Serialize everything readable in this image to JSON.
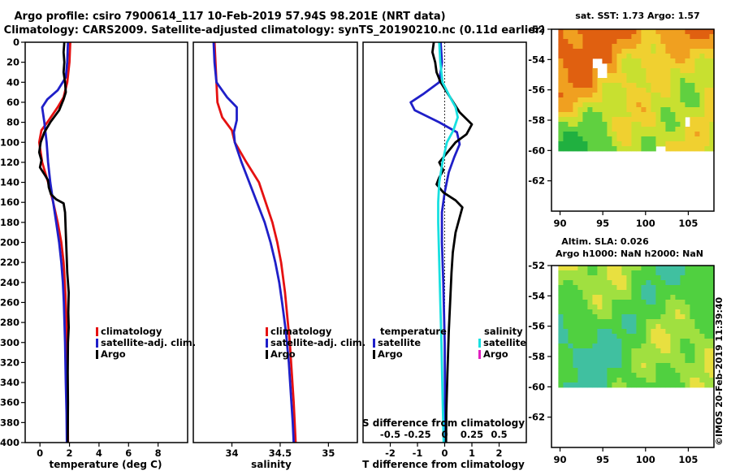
{
  "title": {
    "line1": "Argo profile: csiro 7900614_117 10-Feb-2019 57.94S 98.201E (NRT data)",
    "line2": "Climatology: CARS2009. Satellite-adjusted climatology: synTS_20190210.nc (0.11d earlier)"
  },
  "depth_ticks": [
    0,
    20,
    40,
    60,
    80,
    100,
    120,
    140,
    160,
    180,
    200,
    220,
    240,
    260,
    280,
    300,
    320,
    340,
    360,
    380,
    400
  ],
  "colors": {
    "climatology": "#e51111",
    "satellite": "#1f1fc8",
    "argo": "#000000",
    "satellite_s": "#18e0e0",
    "argo_s": "#e020c0"
  },
  "chart_data": [
    {
      "type": "line",
      "id": "temperature",
      "xlabel": "temperature (deg C)",
      "xlim": [
        -1,
        10
      ],
      "ylim": [
        400,
        0
      ],
      "xticks": [
        0,
        2,
        4,
        6,
        8
      ],
      "xtick_labels": [
        "0",
        "2",
        "4",
        "6",
        "8"
      ],
      "legend": [
        "climatology",
        "satellite-adj. clim.",
        "Argo"
      ],
      "series": [
        {
          "name": "climatology",
          "color": "#e51111",
          "points": [
            [
              2.05,
              0
            ],
            [
              2.0,
              20
            ],
            [
              1.85,
              40
            ],
            [
              1.6,
              55
            ],
            [
              1.2,
              65
            ],
            [
              0.6,
              78
            ],
            [
              0.1,
              88
            ],
            [
              -0.05,
              100
            ],
            [
              0.15,
              120
            ],
            [
              0.55,
              140
            ],
            [
              0.9,
              160
            ],
            [
              1.2,
              180
            ],
            [
              1.45,
              200
            ],
            [
              1.6,
              220
            ],
            [
              1.72,
              250
            ],
            [
              1.8,
              280
            ],
            [
              1.85,
              320
            ],
            [
              1.88,
              360
            ],
            [
              1.9,
              400
            ]
          ]
        },
        {
          "name": "satellite-adj. clim.",
          "color": "#1f1fc8",
          "points": [
            [
              1.9,
              0
            ],
            [
              1.85,
              20
            ],
            [
              1.75,
              35
            ],
            [
              1.2,
              48
            ],
            [
              0.5,
              57
            ],
            [
              0.15,
              65
            ],
            [
              0.3,
              80
            ],
            [
              0.45,
              100
            ],
            [
              0.55,
              120
            ],
            [
              0.7,
              140
            ],
            [
              0.9,
              160
            ],
            [
              1.1,
              180
            ],
            [
              1.3,
              200
            ],
            [
              1.45,
              220
            ],
            [
              1.55,
              240
            ],
            [
              1.62,
              260
            ],
            [
              1.7,
              300
            ],
            [
              1.75,
              340
            ],
            [
              1.8,
              370
            ],
            [
              1.82,
              400
            ]
          ]
        },
        {
          "name": "Argo",
          "color": "#000000",
          "points": [
            [
              1.65,
              0
            ],
            [
              1.6,
              10
            ],
            [
              1.65,
              20
            ],
            [
              1.6,
              30
            ],
            [
              1.7,
              40
            ],
            [
              1.75,
              50
            ],
            [
              1.6,
              57
            ],
            [
              1.3,
              68
            ],
            [
              0.7,
              80
            ],
            [
              0.3,
              90
            ],
            [
              0.05,
              100
            ],
            [
              -0.05,
              110
            ],
            [
              0.1,
              118
            ],
            [
              0.0,
              125
            ],
            [
              0.35,
              133
            ],
            [
              0.55,
              138
            ],
            [
              0.6,
              145
            ],
            [
              0.75,
              152
            ],
            [
              1.1,
              157
            ],
            [
              1.6,
              161
            ],
            [
              1.7,
              170
            ],
            [
              1.75,
              190
            ],
            [
              1.8,
              210
            ],
            [
              1.85,
              230
            ],
            [
              1.95,
              250
            ],
            [
              1.92,
              270
            ],
            [
              1.95,
              285
            ],
            [
              1.9,
              300
            ],
            [
              1.88,
              330
            ],
            [
              1.9,
              360
            ],
            [
              1.88,
              400
            ]
          ]
        }
      ]
    },
    {
      "type": "line",
      "id": "salinity",
      "xlabel": "salinity",
      "xlim": [
        33.6,
        35.3
      ],
      "ylim": [
        400,
        0
      ],
      "xticks": [
        34,
        34.5,
        35
      ],
      "xtick_labels": [
        "34",
        "34.5",
        "35"
      ],
      "legend": [
        "climatology",
        "satellite-adj. clim.",
        "Argo"
      ],
      "series": [
        {
          "name": "climatology",
          "color": "#e51111",
          "points": [
            [
              33.82,
              0
            ],
            [
              33.83,
              20
            ],
            [
              33.84,
              40
            ],
            [
              33.85,
              60
            ],
            [
              33.9,
              75
            ],
            [
              34.0,
              88
            ],
            [
              34.03,
              100
            ],
            [
              34.15,
              120
            ],
            [
              34.28,
              140
            ],
            [
              34.35,
              160
            ],
            [
              34.42,
              180
            ],
            [
              34.47,
              200
            ],
            [
              34.51,
              220
            ],
            [
              34.55,
              250
            ],
            [
              34.58,
              280
            ],
            [
              34.6,
              300
            ],
            [
              34.62,
              330
            ],
            [
              34.64,
              360
            ],
            [
              34.66,
              400
            ]
          ]
        },
        {
          "name": "satellite-adj. clim.",
          "color": "#1f1fc8",
          "points": [
            [
              33.81,
              0
            ],
            [
              33.82,
              20
            ],
            [
              33.84,
              40
            ],
            [
              33.95,
              55
            ],
            [
              34.05,
              65
            ],
            [
              34.05,
              78
            ],
            [
              34.02,
              90
            ],
            [
              34.03,
              100
            ],
            [
              34.1,
              120
            ],
            [
              34.18,
              140
            ],
            [
              34.26,
              160
            ],
            [
              34.34,
              180
            ],
            [
              34.4,
              200
            ],
            [
              34.45,
              220
            ],
            [
              34.49,
              240
            ],
            [
              34.52,
              260
            ],
            [
              34.56,
              290
            ],
            [
              34.59,
              320
            ],
            [
              34.61,
              350
            ],
            [
              34.63,
              380
            ],
            [
              34.64,
              400
            ]
          ]
        }
      ]
    },
    {
      "type": "line",
      "id": "difference",
      "xlabel": "T difference from climatology",
      "xlabel_top": "S difference from climatology",
      "xlim": [
        -3.0,
        3.0
      ],
      "ylim": [
        400,
        0
      ],
      "xticks": [
        -2,
        -1,
        0,
        1,
        2
      ],
      "xtick_labels": [
        "-2",
        "-1",
        "0",
        "1",
        "2"
      ],
      "s_xlim": [
        -0.75,
        0.75
      ],
      "s_xticks": [
        -0.5,
        -0.25,
        0,
        0.25,
        0.5
      ],
      "s_xtick_labels": [
        "-0.5",
        "-0.25",
        "0",
        "0.25",
        "0.5"
      ],
      "legend_temperature_title": "temperature",
      "legend_salinity_title": "salinity",
      "legend_temperature": [
        "satellite",
        "Argo"
      ],
      "legend_salinity": [
        "satellite",
        "Argo"
      ],
      "series": [
        {
          "name": "temperature satellite",
          "color": "#1f1fc8",
          "points": [
            [
              -0.15,
              0
            ],
            [
              -0.1,
              20
            ],
            [
              -0.2,
              40
            ],
            [
              -0.8,
              52
            ],
            [
              -1.25,
              60
            ],
            [
              -1.1,
              68
            ],
            [
              -0.2,
              80
            ],
            [
              0.45,
              90
            ],
            [
              0.55,
              102
            ],
            [
              0.35,
              115
            ],
            [
              0.15,
              130
            ],
            [
              0.0,
              150
            ],
            [
              -0.1,
              170
            ],
            [
              -0.1,
              200
            ],
            [
              -0.05,
              240
            ],
            [
              0.0,
              300
            ],
            [
              0.02,
              400
            ]
          ]
        },
        {
          "name": "temperature Argo",
          "color": "#000000",
          "points": [
            [
              -0.4,
              0
            ],
            [
              -0.45,
              10
            ],
            [
              -0.35,
              20
            ],
            [
              -0.3,
              30
            ],
            [
              -0.15,
              40
            ],
            [
              0.2,
              55
            ],
            [
              0.55,
              70
            ],
            [
              1.0,
              82
            ],
            [
              0.8,
              92
            ],
            [
              0.4,
              100
            ],
            [
              0.1,
              110
            ],
            [
              -0.2,
              120
            ],
            [
              -0.05,
              128
            ],
            [
              -0.2,
              135
            ],
            [
              -0.3,
              142
            ],
            [
              -0.05,
              150
            ],
            [
              0.4,
              158
            ],
            [
              0.65,
              165
            ],
            [
              0.55,
              175
            ],
            [
              0.4,
              190
            ],
            [
              0.3,
              210
            ],
            [
              0.25,
              230
            ],
            [
              0.2,
              260
            ],
            [
              0.15,
              290
            ],
            [
              0.1,
              330
            ],
            [
              0.06,
              370
            ],
            [
              0.05,
              400
            ]
          ]
        },
        {
          "name": "salinity satellite",
          "color": "#18e0e0",
          "points": [
            [
              -0.05,
              0
            ],
            [
              -0.04,
              20
            ],
            [
              -0.02,
              40
            ],
            [
              0.05,
              55
            ],
            [
              0.1,
              65
            ],
            [
              0.12,
              75
            ],
            [
              0.08,
              88
            ],
            [
              0.02,
              100
            ],
            [
              -0.02,
              120
            ],
            [
              -0.05,
              140
            ],
            [
              -0.06,
              160
            ],
            [
              -0.06,
              180
            ],
            [
              -0.05,
              220
            ],
            [
              -0.04,
              260
            ],
            [
              -0.03,
              300
            ],
            [
              -0.02,
              350
            ],
            [
              -0.01,
              400
            ]
          ]
        }
      ]
    },
    {
      "type": "heatmap",
      "id": "sst",
      "title": "sat. SST: 1.73 Argo: 1.57",
      "xticks": [
        90,
        95,
        100,
        105
      ],
      "yticks": [
        -52,
        -54,
        -56,
        -58,
        -60,
        -62
      ],
      "xtick_labels": [
        "90",
        "95",
        "100",
        "105"
      ],
      "ytick_labels": [
        "-52",
        "-54",
        "-56",
        "-58",
        "-60",
        "-62"
      ],
      "xlim": [
        89,
        108
      ],
      "ylim": [
        -64,
        -52
      ],
      "data_ylim": [
        -60,
        -52
      ]
    },
    {
      "type": "heatmap",
      "id": "sla",
      "title_line1": "Altim. SLA: 0.026",
      "title_line2": "Argo h1000: NaN h2000: NaN",
      "xticks": [
        90,
        95,
        100,
        105
      ],
      "yticks": [
        -52,
        -54,
        -56,
        -58,
        -60,
        -62
      ],
      "xtick_labels": [
        "90",
        "95",
        "100",
        "105"
      ],
      "ytick_labels": [
        "-52",
        "-54",
        "-56",
        "-58",
        "-60",
        "-62"
      ],
      "xlim": [
        89,
        108
      ],
      "ylim": [
        -64,
        -52
      ],
      "data_ylim": [
        -60,
        -52
      ]
    }
  ],
  "credit": "©IMOS 20-Feb-2019 11:39:40"
}
